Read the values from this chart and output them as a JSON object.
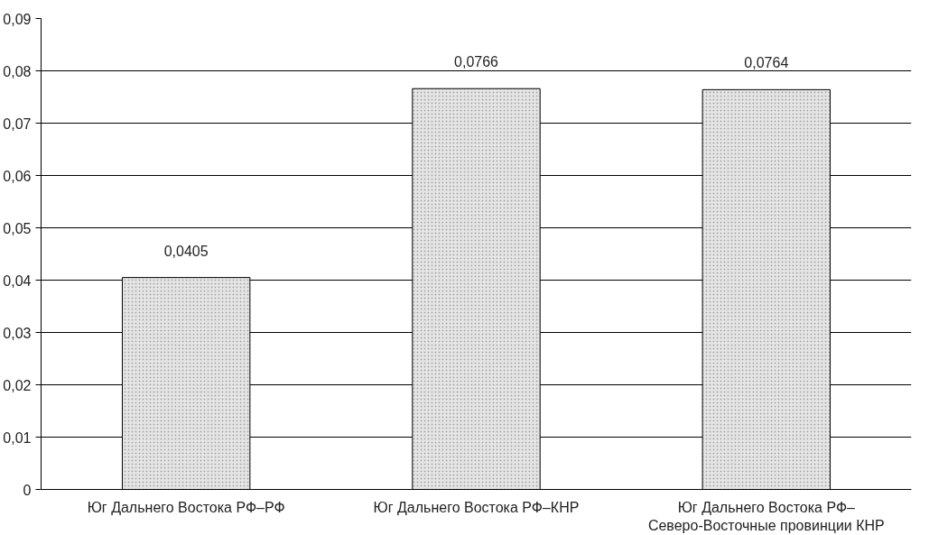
{
  "chart_data": {
    "type": "bar",
    "categories": [
      "Юг Дальнего Востока РФ–РФ",
      "Юг Дальнего Востока РФ–КНР",
      "Юг Дальнего Востока РФ–\nСеверо-Восточные провинции КНР"
    ],
    "values": [
      0.0405,
      0.0766,
      0.0764
    ],
    "value_labels": [
      "0,0405",
      "0,0766",
      "0,0764"
    ],
    "color": "#e6e6e6",
    "ylim": [
      0,
      0.09
    ],
    "yticks": [
      {
        "value": 0,
        "label": "0"
      },
      {
        "value": 0.01,
        "label": "0,01"
      },
      {
        "value": 0.02,
        "label": "0,02"
      },
      {
        "value": 0.03,
        "label": "0,03"
      },
      {
        "value": 0.04,
        "label": "0,04"
      },
      {
        "value": 0.05,
        "label": "0,05"
      },
      {
        "value": 0.06,
        "label": "0,06"
      },
      {
        "value": 0.07,
        "label": "0,07"
      },
      {
        "value": 0.08,
        "label": "0,08"
      },
      {
        "value": 0.09,
        "label": "0,09"
      }
    ],
    "grid": "y"
  }
}
